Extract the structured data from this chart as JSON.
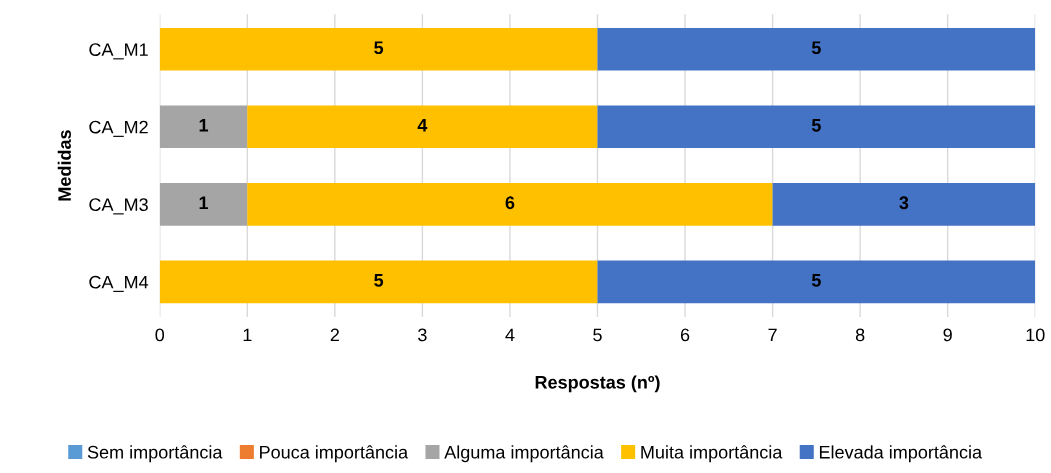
{
  "chart_data": {
    "type": "bar",
    "orientation": "horizontal",
    "stacked": true,
    "categories": [
      "CA_M1",
      "CA_M2",
      "CA_M3",
      "CA_M4"
    ],
    "series": [
      {
        "name": "Sem importância",
        "color": "#5b9bd5",
        "values": [
          0,
          0,
          0,
          0
        ],
        "value_labels": [
          null,
          null,
          null,
          null
        ]
      },
      {
        "name": "Pouca importância",
        "color": "#ed7d31",
        "values": [
          0,
          0,
          0,
          0
        ],
        "value_labels": [
          null,
          null,
          null,
          null
        ]
      },
      {
        "name": "Alguma importância",
        "color": "#a5a5a5",
        "values": [
          0,
          1,
          1,
          0
        ],
        "value_labels": [
          null,
          "1",
          "1",
          null
        ]
      },
      {
        "name": "Muita importância",
        "color": "#ffc000",
        "values": [
          5,
          4,
          6,
          5
        ],
        "value_labels": [
          "5",
          "4",
          "6",
          "5"
        ]
      },
      {
        "name": "Elevada importância",
        "color": "#4472c4",
        "values": [
          5,
          5,
          3,
          5
        ],
        "value_labels": [
          "5",
          "5",
          "3",
          "5"
        ]
      }
    ],
    "xlim": [
      0,
      10
    ],
    "xticks": [
      0,
      1,
      2,
      3,
      4,
      5,
      6,
      7,
      8,
      9,
      10
    ],
    "xlabel": "Respostas (nº)",
    "ylabel": "Medidas",
    "grid": "x",
    "legend": "bottom"
  }
}
